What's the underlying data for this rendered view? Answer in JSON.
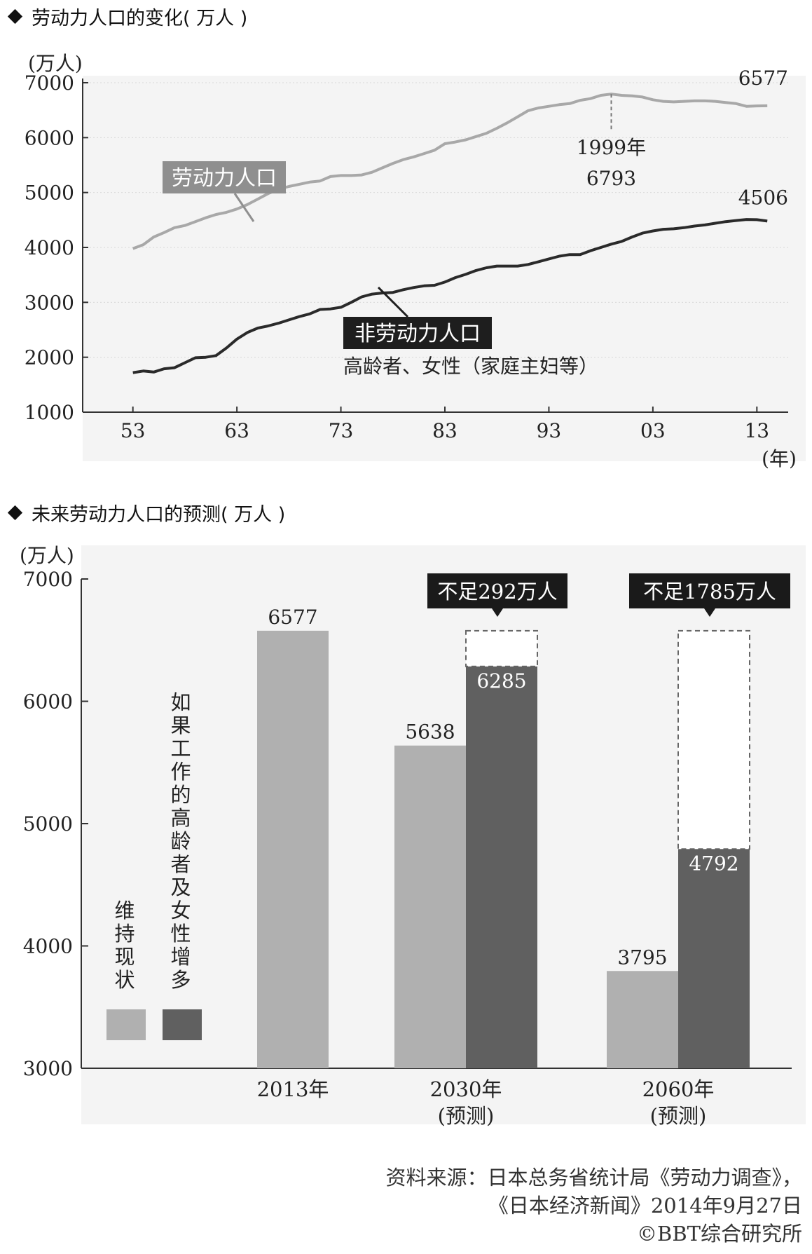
{
  "sections": {
    "s1_title": "劳动力人口的变化( 万人 )",
    "s2_title": "未来劳动力人口的预测( 万人 )"
  },
  "chart_data": [
    {
      "type": "line",
      "ylabel": "(万人)",
      "xlabel": "(年)",
      "ylim": [
        1000,
        7000
      ],
      "yticks": [
        "7000",
        "6000",
        "5000",
        "4000",
        "3000",
        "2000",
        "1000"
      ],
      "ytick_values": [
        7000,
        6000,
        5000,
        4000,
        3000,
        2000,
        1000
      ],
      "xticks": [
        "53",
        "63",
        "73",
        "83",
        "93",
        "03",
        "13"
      ],
      "xtick_years": [
        1953,
        1963,
        1973,
        1983,
        1993,
        2003,
        2013
      ],
      "xlim": [
        1951,
        2015
      ],
      "grid": true,
      "series": [
        {
          "name": "劳动力人口",
          "color": "#a8a8a8",
          "x": [
            1953,
            1954,
            1955,
            1956,
            1957,
            1958,
            1959,
            1960,
            1961,
            1962,
            1963,
            1964,
            1965,
            1966,
            1967,
            1968,
            1969,
            1970,
            1971,
            1972,
            1973,
            1974,
            1975,
            1976,
            1977,
            1978,
            1979,
            1980,
            1981,
            1982,
            1983,
            1984,
            1985,
            1986,
            1987,
            1988,
            1989,
            1990,
            1991,
            1992,
            1993,
            1994,
            1995,
            1996,
            1997,
            1998,
            1999,
            2000,
            2001,
            2002,
            2003,
            2004,
            2005,
            2006,
            2007,
            2008,
            2009,
            2010,
            2011,
            2012,
            2013,
            2014
          ],
          "y": [
            3980,
            4050,
            4190,
            4270,
            4360,
            4400,
            4470,
            4540,
            4600,
            4640,
            4700,
            4780,
            4880,
            4980,
            5060,
            5110,
            5150,
            5190,
            5210,
            5290,
            5310,
            5310,
            5320,
            5370,
            5450,
            5530,
            5600,
            5650,
            5710,
            5770,
            5890,
            5920,
            5960,
            6020,
            6080,
            6170,
            6270,
            6380,
            6490,
            6540,
            6570,
            6600,
            6620,
            6680,
            6710,
            6770,
            6793,
            6770,
            6760,
            6740,
            6690,
            6660,
            6650,
            6660,
            6670,
            6670,
            6660,
            6640,
            6620,
            6570,
            6577,
            6580
          ]
        },
        {
          "name": "非劳动力人口",
          "color": "#2a2a2a",
          "x": [
            1953,
            1954,
            1955,
            1956,
            1957,
            1958,
            1959,
            1960,
            1961,
            1962,
            1963,
            1964,
            1965,
            1966,
            1967,
            1968,
            1969,
            1970,
            1971,
            1972,
            1973,
            1974,
            1975,
            1976,
            1977,
            1978,
            1979,
            1980,
            1981,
            1982,
            1983,
            1984,
            1985,
            1986,
            1987,
            1988,
            1989,
            1990,
            1991,
            1992,
            1993,
            1994,
            1995,
            1996,
            1997,
            1998,
            1999,
            2000,
            2001,
            2002,
            2003,
            2004,
            2005,
            2006,
            2007,
            2008,
            2009,
            2010,
            2011,
            2012,
            2013,
            2014
          ],
          "y": [
            1720,
            1750,
            1730,
            1790,
            1810,
            1900,
            1990,
            2000,
            2030,
            2170,
            2330,
            2450,
            2530,
            2570,
            2620,
            2680,
            2740,
            2790,
            2870,
            2880,
            2910,
            3000,
            3100,
            3150,
            3170,
            3180,
            3230,
            3270,
            3300,
            3310,
            3370,
            3450,
            3510,
            3580,
            3630,
            3660,
            3660,
            3660,
            3690,
            3740,
            3790,
            3840,
            3870,
            3870,
            3940,
            4000,
            4060,
            4110,
            4190,
            4260,
            4300,
            4330,
            4340,
            4360,
            4390,
            4410,
            4440,
            4470,
            4490,
            4510,
            4506,
            4480
          ]
        }
      ],
      "labels": {
        "labor": "劳动力人口",
        "nonlabor": "非劳动力人口",
        "nonlabor_sub": "高龄者、女性（家庭主妇等）",
        "end_labor": "6577",
        "end_nonlabor": "4506",
        "peak_year": "1999年",
        "peak_value": "6793"
      }
    },
    {
      "type": "bar",
      "ylabel": "(万人)",
      "ylim": [
        3000,
        7000
      ],
      "yticks": [
        "7000",
        "6000",
        "5000",
        "4000",
        "3000"
      ],
      "ytick_values": [
        7000,
        6000,
        5000,
        4000,
        3000
      ],
      "legend": [
        {
          "label": "维持现状",
          "color": "#b0b0b0"
        },
        {
          "label": "如果工作的高龄者及女性增多",
          "color": "#606060"
        }
      ],
      "categories": [
        {
          "label": "2013年",
          "sub": ""
        },
        {
          "label": "2030年",
          "sub": "(预测)"
        },
        {
          "label": "2060年",
          "sub": "(预测)"
        }
      ],
      "series": [
        {
          "name": "维持现状",
          "color": "#b0b0b0",
          "values": [
            6577,
            5638,
            3795
          ]
        },
        {
          "name": "如果工作的高龄者及女性增多",
          "color": "#606060",
          "values": [
            null,
            6285,
            4792
          ]
        }
      ],
      "value_labels": {
        "b2013": "6577",
        "b2030_light": "5638",
        "b2030_dark": "6285",
        "b2060_light": "3795",
        "b2060_dark": "4792"
      },
      "callouts": {
        "c2030": "不足292万人",
        "c2060": "不足1785万人"
      }
    }
  ],
  "source": {
    "line1": "资料来源：日本总务省统计局《劳动力调查》，",
    "line2": "《日本经济新闻》2014年9月27日",
    "line3": "©BBT综合研究所"
  }
}
